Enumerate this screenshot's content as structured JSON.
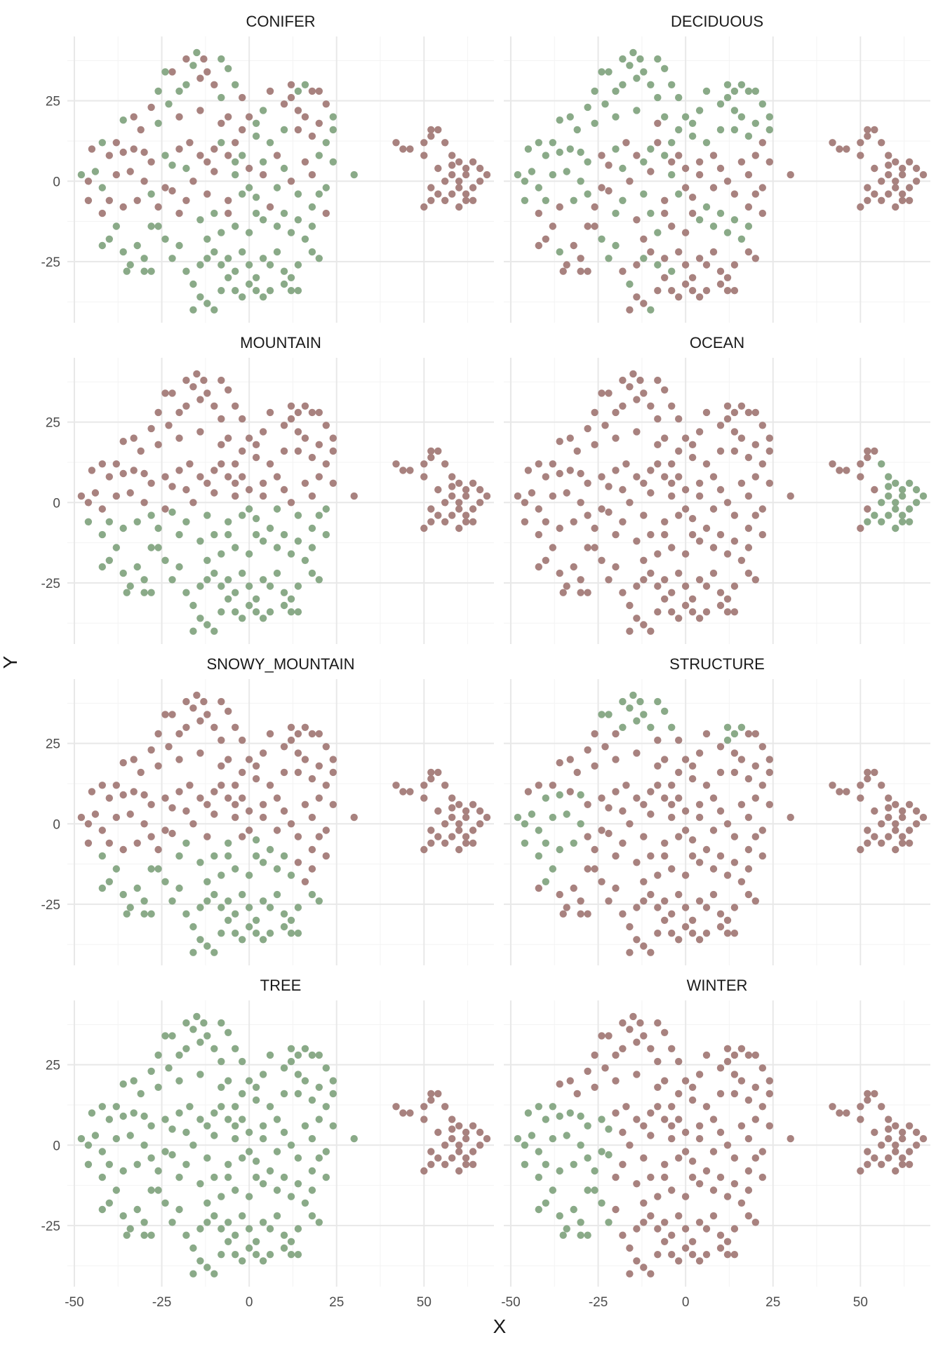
{
  "chart_data": {
    "type": "scatter",
    "xlabel": "X",
    "ylabel": "Y",
    "xlim": [
      -52,
      70
    ],
    "ylim": [
      -44,
      45
    ],
    "x_ticks": [
      -50,
      -25,
      0,
      25,
      50
    ],
    "y_ticks": [
      -25,
      0,
      25
    ],
    "grid": true,
    "colors": {
      "in_class": "#8aaa88",
      "out_class": "#a8827f"
    },
    "panels": [
      {
        "title": "CONIFER",
        "green_rule": "conifer"
      },
      {
        "title": "DECIDUOUS",
        "green_rule": "deciduous"
      },
      {
        "title": "MOUNTAIN",
        "green_rule": "mountain"
      },
      {
        "title": "OCEAN",
        "green_rule": "ocean"
      },
      {
        "title": "SNOWY_MOUNTAIN",
        "green_rule": "snowy"
      },
      {
        "title": "STRUCTURE",
        "green_rule": "structure"
      },
      {
        "title": "TREE",
        "green_rule": "tree"
      },
      {
        "title": "WINTER",
        "green_rule": "winter"
      }
    ],
    "points": [
      [
        -15,
        40
      ],
      [
        -13,
        38
      ],
      [
        -8,
        38
      ],
      [
        -18,
        38
      ],
      [
        -16,
        36
      ],
      [
        -22,
        34
      ],
      [
        -24,
        34
      ],
      [
        -12,
        34
      ],
      [
        -6,
        35
      ],
      [
        -14,
        32
      ],
      [
        -10,
        30
      ],
      [
        -18,
        30
      ],
      [
        -4,
        30
      ],
      [
        -26,
        28
      ],
      [
        -20,
        28
      ],
      [
        -8,
        26
      ],
      [
        -2,
        26
      ],
      [
        -23,
        24
      ],
      [
        -28,
        23
      ],
      [
        -14,
        22
      ],
      [
        -6,
        20
      ],
      [
        -20,
        20
      ],
      [
        -26,
        18
      ],
      [
        -33,
        20
      ],
      [
        -36,
        19
      ],
      [
        -31,
        16
      ],
      [
        -42,
        12
      ],
      [
        -38,
        12
      ],
      [
        -45,
        10
      ],
      [
        -40,
        8
      ],
      [
        -36,
        9
      ],
      [
        -33,
        10
      ],
      [
        -30,
        9
      ],
      [
        -28,
        6
      ],
      [
        -24,
        8
      ],
      [
        -22,
        5
      ],
      [
        -20,
        10
      ],
      [
        -17,
        12
      ],
      [
        -14,
        8
      ],
      [
        -12,
        6
      ],
      [
        -10,
        10
      ],
      [
        -8,
        12
      ],
      [
        -6,
        8
      ],
      [
        -4,
        6
      ],
      [
        -2,
        8
      ],
      [
        -10,
        3
      ],
      [
        -16,
        0
      ],
      [
        -18,
        4
      ],
      [
        -24,
        -2
      ],
      [
        -30,
        0
      ],
      [
        -34,
        3
      ],
      [
        -38,
        2
      ],
      [
        -42,
        -2
      ],
      [
        -44,
        3
      ],
      [
        -46,
        0
      ],
      [
        -48,
        2
      ],
      [
        -40,
        -6
      ],
      [
        -46,
        -6
      ],
      [
        -42,
        -10
      ],
      [
        -36,
        -8
      ],
      [
        -32,
        -6
      ],
      [
        -28,
        -4
      ],
      [
        -22,
        -3
      ],
      [
        -18,
        -6
      ],
      [
        -12,
        -4
      ],
      [
        -6,
        -6
      ],
      [
        -2,
        -4
      ],
      [
        0,
        -2
      ],
      [
        2,
        -5
      ],
      [
        -38,
        -14
      ],
      [
        -40,
        -18
      ],
      [
        -42,
        -20
      ],
      [
        -36,
        -22
      ],
      [
        -34,
        -26
      ],
      [
        -30,
        -24
      ],
      [
        -28,
        -28
      ],
      [
        -32,
        -20
      ],
      [
        -26,
        -14
      ],
      [
        -24,
        -18
      ],
      [
        -20,
        -20
      ],
      [
        -22,
        -24
      ],
      [
        -18,
        -28
      ],
      [
        -14,
        -26
      ],
      [
        -12,
        -24
      ],
      [
        -10,
        -22
      ],
      [
        -8,
        -26
      ],
      [
        -6,
        -24
      ],
      [
        -4,
        -28
      ],
      [
        -2,
        -22
      ],
      [
        0,
        -26
      ],
      [
        2,
        -30
      ],
      [
        4,
        -24
      ],
      [
        6,
        -26
      ],
      [
        8,
        -22
      ],
      [
        10,
        -28
      ],
      [
        12,
        -30
      ],
      [
        14,
        -26
      ],
      [
        -16,
        -32
      ],
      [
        -14,
        -36
      ],
      [
        -12,
        -38
      ],
      [
        -10,
        -40
      ],
      [
        -16,
        -40
      ],
      [
        -8,
        -34
      ],
      [
        -4,
        -34
      ],
      [
        -2,
        -36
      ],
      [
        0,
        -32
      ],
      [
        2,
        -34
      ],
      [
        6,
        -34
      ],
      [
        10,
        -32
      ],
      [
        14,
        -34
      ],
      [
        12,
        -34
      ],
      [
        4,
        -36
      ],
      [
        -6,
        -30
      ],
      [
        -12,
        -18
      ],
      [
        -8,
        -16
      ],
      [
        -4,
        -14
      ],
      [
        0,
        -16
      ],
      [
        4,
        -12
      ],
      [
        8,
        -14
      ],
      [
        12,
        -16
      ],
      [
        16,
        -18
      ],
      [
        18,
        -22
      ],
      [
        20,
        -24
      ],
      [
        -14,
        -12
      ],
      [
        -10,
        -10
      ],
      [
        -6,
        -10
      ],
      [
        2,
        -10
      ],
      [
        6,
        -8
      ],
      [
        10,
        -10
      ],
      [
        14,
        -12
      ],
      [
        18,
        -14
      ],
      [
        22,
        -10
      ],
      [
        20,
        -4
      ],
      [
        22,
        -2
      ],
      [
        18,
        2
      ],
      [
        16,
        6
      ],
      [
        20,
        8
      ],
      [
        24,
        6
      ],
      [
        22,
        12
      ],
      [
        24,
        16
      ],
      [
        20,
        18
      ],
      [
        18,
        14
      ],
      [
        16,
        20
      ],
      [
        14,
        22
      ],
      [
        12,
        26
      ],
      [
        10,
        24
      ],
      [
        14,
        28
      ],
      [
        18,
        28
      ],
      [
        22,
        24
      ],
      [
        24,
        20
      ],
      [
        20,
        28
      ],
      [
        12,
        30
      ],
      [
        16,
        30
      ],
      [
        6,
        28
      ],
      [
        4,
        22
      ],
      [
        0,
        20
      ],
      [
        2,
        14
      ],
      [
        6,
        12
      ],
      [
        8,
        8
      ],
      [
        10,
        4
      ],
      [
        12,
        0
      ],
      [
        14,
        -4
      ],
      [
        8,
        -2
      ],
      [
        4,
        2
      ],
      [
        0,
        4
      ],
      [
        2,
        18
      ],
      [
        -2,
        16
      ],
      [
        -4,
        12
      ],
      [
        -8,
        18
      ],
      [
        10,
        16
      ],
      [
        14,
        16
      ],
      [
        -4,
        2
      ],
      [
        4,
        6
      ],
      [
        18,
        -8
      ],
      [
        -20,
        -10
      ],
      [
        -26,
        -8
      ],
      [
        -28,
        -14
      ],
      [
        -30,
        -28
      ],
      [
        -35,
        -28
      ],
      [
        30,
        2
      ],
      [
        44,
        10
      ],
      [
        42,
        12
      ],
      [
        46,
        10
      ],
      [
        50,
        12
      ],
      [
        50,
        8
      ],
      [
        52,
        14
      ],
      [
        54,
        16
      ],
      [
        52,
        16
      ],
      [
        56,
        12
      ],
      [
        58,
        8
      ],
      [
        60,
        6
      ],
      [
        62,
        4
      ],
      [
        64,
        6
      ],
      [
        66,
        4
      ],
      [
        68,
        2
      ],
      [
        62,
        2
      ],
      [
        58,
        2
      ],
      [
        56,
        0
      ],
      [
        60,
        -2
      ],
      [
        64,
        -2
      ],
      [
        66,
        0
      ],
      [
        58,
        -4
      ],
      [
        62,
        -4
      ],
      [
        64,
        -6
      ],
      [
        60,
        -8
      ],
      [
        56,
        -6
      ],
      [
        52,
        -6
      ],
      [
        54,
        -4
      ],
      [
        50,
        -8
      ],
      [
        52,
        -2
      ],
      [
        60,
        0
      ],
      [
        62,
        -6
      ],
      [
        54,
        4
      ],
      [
        58,
        5
      ]
    ]
  }
}
